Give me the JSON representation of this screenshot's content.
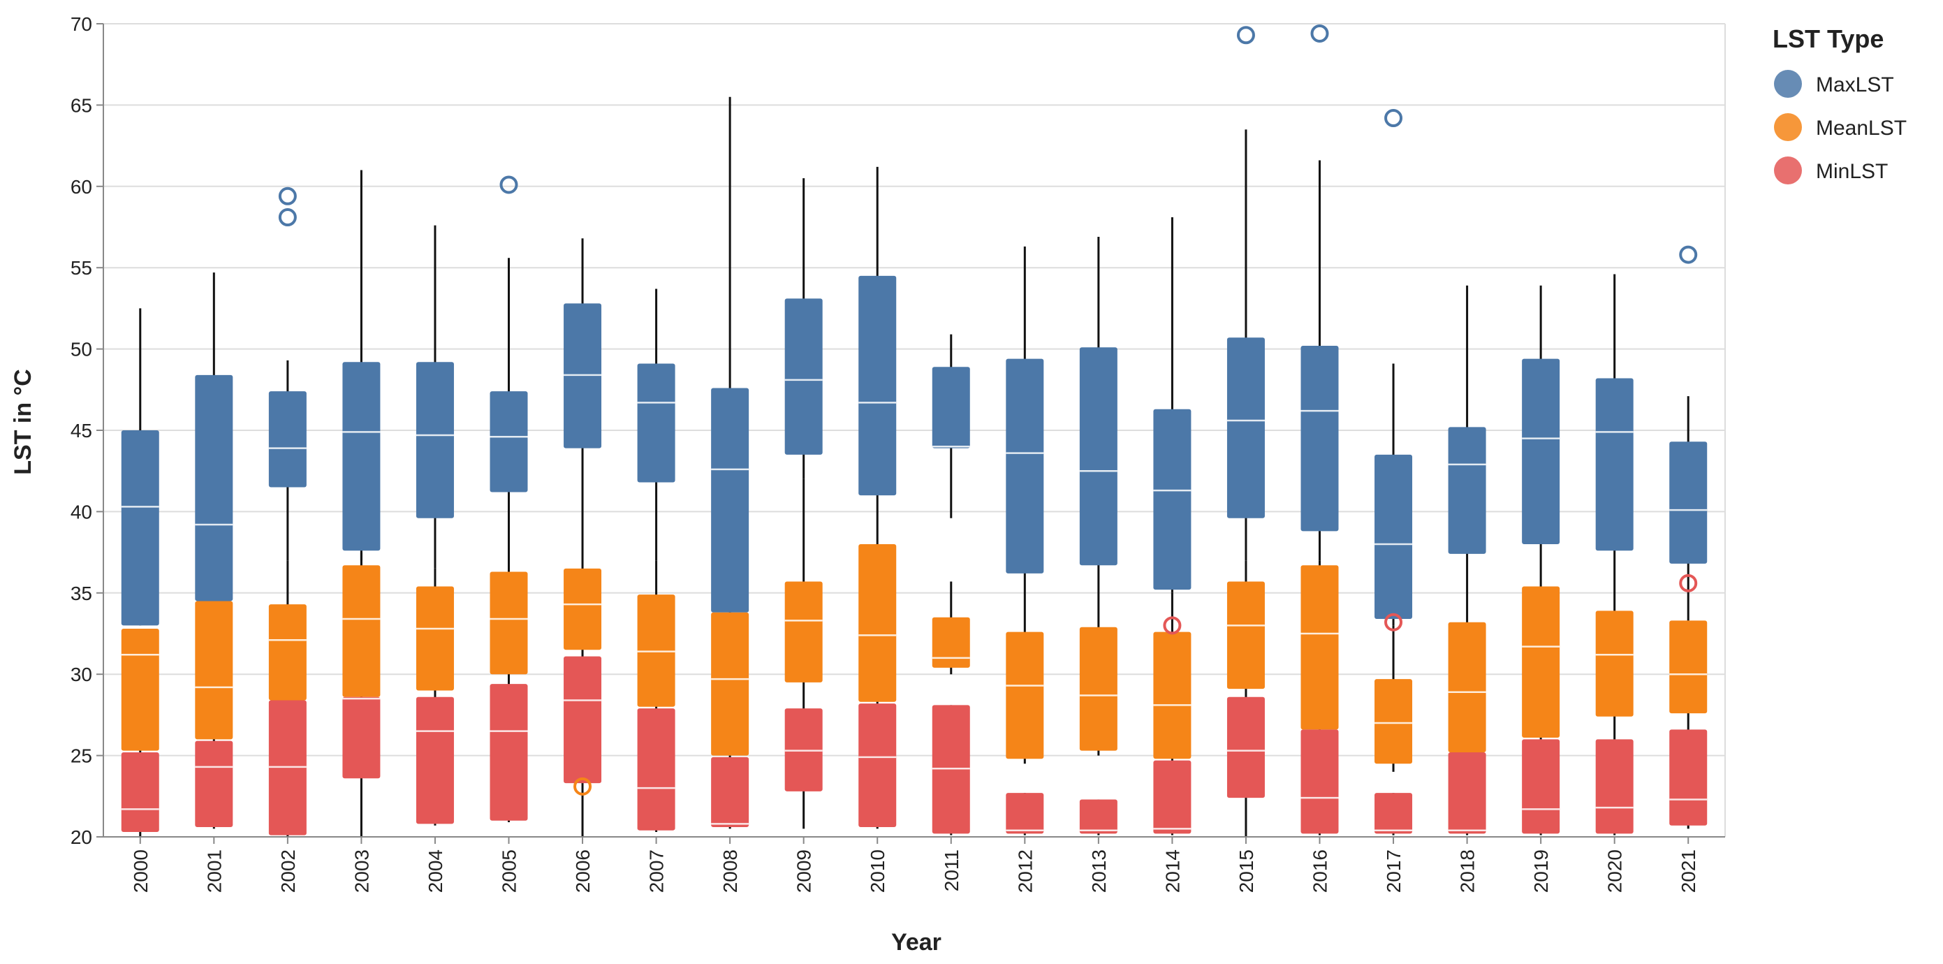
{
  "chart_data": {
    "type": "boxplot",
    "title": "",
    "xlabel": "Year",
    "ylabel": "LST in °C",
    "ylim": [
      20,
      70
    ],
    "yticks": [
      20,
      25,
      30,
      35,
      40,
      45,
      50,
      55,
      60,
      65,
      70
    ],
    "categories": [
      "2000",
      "2001",
      "2002",
      "2003",
      "2004",
      "2005",
      "2006",
      "2007",
      "2008",
      "2009",
      "2010",
      "2011",
      "2012",
      "2013",
      "2014",
      "2015",
      "2016",
      "2017",
      "2018",
      "2019",
      "2020",
      "2021"
    ],
    "legend": {
      "title": "LST Type",
      "position": "right",
      "entries": [
        {
          "name": "MaxLST",
          "color": "#4c78a8"
        },
        {
          "name": "MeanLST",
          "color": "#f58518"
        },
        {
          "name": "MinLST",
          "color": "#e45756"
        }
      ]
    },
    "series": [
      {
        "name": "MaxLST",
        "color": "#4c78a8",
        "boxes": [
          {
            "min": 33,
            "q1": 33,
            "median": 40.3,
            "q3": 45,
            "max": 52.5,
            "outliers": []
          },
          {
            "min": 34.5,
            "q1": 34.5,
            "median": 39.2,
            "q3": 48.4,
            "max": 54.7,
            "outliers": []
          },
          {
            "min": 37,
            "q1": 41.5,
            "median": 43.9,
            "q3": 47.4,
            "max": 49.3,
            "outliers": [
              58.1,
              59.4
            ]
          },
          {
            "min": 37,
            "q1": 37.6,
            "median": 44.9,
            "q3": 49.2,
            "max": 61,
            "outliers": []
          },
          {
            "min": 36.5,
            "q1": 39.6,
            "median": 44.7,
            "q3": 49.2,
            "max": 57.6,
            "outliers": []
          },
          {
            "min": 36,
            "q1": 41.2,
            "median": 44.6,
            "q3": 47.4,
            "max": 55.6,
            "outliers": [
              60.1
            ]
          },
          {
            "min": 38,
            "q1": 43.9,
            "median": 48.4,
            "q3": 52.8,
            "max": 56.8,
            "outliers": []
          },
          {
            "min": 37,
            "q1": 41.8,
            "median": 46.7,
            "q3": 49.1,
            "max": 53.7,
            "outliers": []
          },
          {
            "min": 33.5,
            "q1": 33.8,
            "median": 42.6,
            "q3": 47.6,
            "max": 65.5,
            "outliers": []
          },
          {
            "min": 42,
            "q1": 43.5,
            "median": 48.1,
            "q3": 53.1,
            "max": 60.5,
            "outliers": []
          },
          {
            "min": 38,
            "q1": 41,
            "median": 46.7,
            "q3": 54.5,
            "max": 61.2,
            "outliers": []
          },
          {
            "min": 39.6,
            "q1": 43.9,
            "median": 44,
            "q3": 48.9,
            "max": 50.9,
            "outliers": []
          },
          {
            "min": 36,
            "q1": 36.2,
            "median": 43.6,
            "q3": 49.4,
            "max": 56.3,
            "outliers": []
          },
          {
            "min": 36,
            "q1": 36.7,
            "median": 42.5,
            "q3": 50.1,
            "max": 56.9,
            "outliers": []
          },
          {
            "min": 35,
            "q1": 35.2,
            "median": 41.3,
            "q3": 46.3,
            "max": 58.1,
            "outliers": []
          },
          {
            "min": 37,
            "q1": 39.6,
            "median": 45.6,
            "q3": 50.7,
            "max": 63.5,
            "outliers": [
              69.3
            ]
          },
          {
            "min": 37,
            "q1": 38.8,
            "median": 46.2,
            "q3": 50.2,
            "max": 61.6,
            "outliers": [
              69.4
            ]
          },
          {
            "min": 33,
            "q1": 33.4,
            "median": 38,
            "q3": 43.5,
            "max": 49.1,
            "outliers": [
              64.2
            ]
          },
          {
            "min": 33,
            "q1": 37.4,
            "median": 42.9,
            "q3": 45.2,
            "max": 53.9,
            "outliers": []
          },
          {
            "min": 35,
            "q1": 38,
            "median": 44.5,
            "q3": 49.4,
            "max": 53.9,
            "outliers": []
          },
          {
            "min": 33.9,
            "q1": 37.6,
            "median": 44.9,
            "q3": 48.2,
            "max": 54.6,
            "outliers": []
          },
          {
            "min": 33.3,
            "q1": 36.8,
            "median": 40.1,
            "q3": 44.3,
            "max": 47.1,
            "outliers": [
              55.8
            ]
          }
        ]
      },
      {
        "name": "MeanLST",
        "color": "#f58518",
        "boxes": [
          {
            "min": 25,
            "q1": 25.3,
            "median": 31.2,
            "q3": 32.8,
            "max": 32.8,
            "outliers": []
          },
          {
            "min": 25.5,
            "q1": 26,
            "median": 29.2,
            "q3": 34.5,
            "max": 34.5,
            "outliers": []
          },
          {
            "min": 27,
            "q1": 28.4,
            "median": 32.1,
            "q3": 34.3,
            "max": 37,
            "outliers": []
          },
          {
            "min": 27,
            "q1": 28.6,
            "median": 33.4,
            "q3": 36.7,
            "max": 37.5,
            "outliers": []
          },
          {
            "min": 28,
            "q1": 29,
            "median": 32.8,
            "q3": 35.4,
            "max": 36.5,
            "outliers": []
          },
          {
            "min": 28,
            "q1": 30,
            "median": 33.4,
            "q3": 36.3,
            "max": 36.5,
            "outliers": []
          },
          {
            "min": 23.5,
            "q1": 31.5,
            "median": 34.3,
            "q3": 36.5,
            "max": 38,
            "outliers": [
              23.1
            ]
          },
          {
            "min": 27,
            "q1": 28,
            "median": 31.4,
            "q3": 34.9,
            "max": 37,
            "outliers": []
          },
          {
            "min": 24.5,
            "q1": 25,
            "median": 29.7,
            "q3": 33.8,
            "max": 33.8,
            "outliers": []
          },
          {
            "min": 27,
            "q1": 29.5,
            "median": 33.3,
            "q3": 35.7,
            "max": 42,
            "outliers": []
          },
          {
            "min": 28,
            "q1": 28.3,
            "median": 32.4,
            "q3": 38,
            "max": 38,
            "outliers": []
          },
          {
            "min": 30,
            "q1": 30.4,
            "median": 31,
            "q3": 33.5,
            "max": 35.7,
            "outliers": []
          },
          {
            "min": 24.5,
            "q1": 24.8,
            "median": 29.3,
            "q3": 32.6,
            "max": 36,
            "outliers": []
          },
          {
            "min": 25,
            "q1": 25.3,
            "median": 28.7,
            "q3": 32.9,
            "max": 36,
            "outliers": []
          },
          {
            "min": 24.5,
            "q1": 24.8,
            "median": 28.1,
            "q3": 32.6,
            "max": 35,
            "outliers": []
          },
          {
            "min": 28,
            "q1": 29.1,
            "median": 33,
            "q3": 35.7,
            "max": 37,
            "outliers": []
          },
          {
            "min": 26,
            "q1": 26.6,
            "median": 32.5,
            "q3": 36.7,
            "max": 37,
            "outliers": []
          },
          {
            "min": 24,
            "q1": 24.5,
            "median": 27,
            "q3": 29.7,
            "max": 33,
            "outliers": []
          },
          {
            "min": 25,
            "q1": 25.2,
            "median": 28.9,
            "q3": 33.2,
            "max": 33.2,
            "outliers": []
          },
          {
            "min": 26,
            "q1": 26.1,
            "median": 31.7,
            "q3": 35.4,
            "max": 35.4,
            "outliers": []
          },
          {
            "min": 26,
            "q1": 27.4,
            "median": 31.2,
            "q3": 33.9,
            "max": 33.9,
            "outliers": []
          },
          {
            "min": 26.5,
            "q1": 27.6,
            "median": 30,
            "q3": 33.3,
            "max": 33.3,
            "outliers": []
          }
        ]
      },
      {
        "name": "MinLST",
        "color": "#e45756",
        "boxes": [
          {
            "min": 20,
            "q1": 20.3,
            "median": 21.7,
            "q3": 25.2,
            "max": 25.2,
            "outliers": []
          },
          {
            "min": 20.5,
            "q1": 20.6,
            "median": 24.3,
            "q3": 25.9,
            "max": 25.9,
            "outliers": []
          },
          {
            "min": 20,
            "q1": 20.1,
            "median": 24.3,
            "q3": 28.4,
            "max": 28.4,
            "outliers": []
          },
          {
            "min": 20,
            "q1": 23.6,
            "median": 28.5,
            "q3": 28.6,
            "max": 28.6,
            "outliers": []
          },
          {
            "min": 20.7,
            "q1": 20.8,
            "median": 26.5,
            "q3": 28.6,
            "max": 28.6,
            "outliers": []
          },
          {
            "min": 20.9,
            "q1": 21,
            "median": 26.5,
            "q3": 29.4,
            "max": 29.4,
            "outliers": []
          },
          {
            "min": 20,
            "q1": 23.3,
            "median": 28.4,
            "q3": 31.1,
            "max": 31.1,
            "outliers": []
          },
          {
            "min": 20.3,
            "q1": 20.4,
            "median": 23,
            "q3": 27.9,
            "max": 27.9,
            "outliers": []
          },
          {
            "min": 20.5,
            "q1": 20.6,
            "median": 20.8,
            "q3": 24.9,
            "max": 24.9,
            "outliers": []
          },
          {
            "min": 20.5,
            "q1": 22.8,
            "median": 25.3,
            "q3": 27.9,
            "max": 27.9,
            "outliers": []
          },
          {
            "min": 20.5,
            "q1": 20.6,
            "median": 24.9,
            "q3": 28.2,
            "max": 28.2,
            "outliers": []
          },
          {
            "min": 20.1,
            "q1": 20.2,
            "median": 24.2,
            "q3": 28.1,
            "max": 28.1,
            "outliers": []
          },
          {
            "min": 20.1,
            "q1": 20.2,
            "median": 20.4,
            "q3": 22.7,
            "max": 22.7,
            "outliers": []
          },
          {
            "min": 20.1,
            "q1": 20.2,
            "median": 20.4,
            "q3": 22.3,
            "max": 22.3,
            "outliers": []
          },
          {
            "min": 20.1,
            "q1": 20.2,
            "median": 20.5,
            "q3": 24.7,
            "max": 24.7,
            "outliers": [
              33
            ]
          },
          {
            "min": 20,
            "q1": 22.4,
            "median": 25.3,
            "q3": 28.6,
            "max": 28.6,
            "outliers": []
          },
          {
            "min": 20.1,
            "q1": 20.2,
            "median": 22.4,
            "q3": 26.6,
            "max": 26.6,
            "outliers": []
          },
          {
            "min": 20.1,
            "q1": 20.2,
            "median": 20.4,
            "q3": 22.7,
            "max": 22.7,
            "outliers": [
              33.2
            ]
          },
          {
            "min": 20.1,
            "q1": 20.2,
            "median": 20.4,
            "q3": 25.2,
            "max": 25.2,
            "outliers": []
          },
          {
            "min": 20.1,
            "q1": 20.2,
            "median": 21.7,
            "q3": 26,
            "max": 26,
            "outliers": []
          },
          {
            "min": 20.1,
            "q1": 20.2,
            "median": 21.8,
            "q3": 26,
            "max": 26,
            "outliers": []
          },
          {
            "min": 20.5,
            "q1": 20.7,
            "median": 22.3,
            "q3": 26.6,
            "max": 26.6,
            "outliers": [
              35.6
            ]
          }
        ]
      }
    ]
  }
}
